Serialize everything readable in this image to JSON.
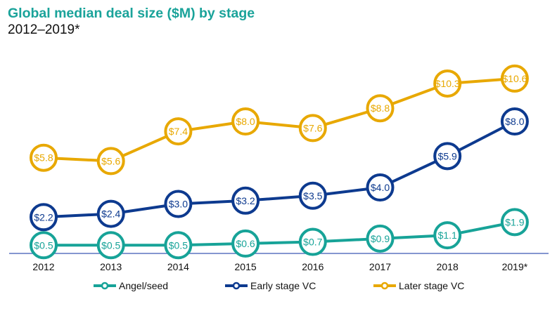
{
  "chart_data": {
    "type": "line",
    "title": "Global median deal size ($M) by stage",
    "subtitle": "2012–2019*",
    "xlabel": "",
    "ylabel": "",
    "categories": [
      "2012",
      "2013",
      "2014",
      "2015",
      "2016",
      "2017",
      "2018",
      "2019*"
    ],
    "ylim": [
      0,
      11
    ],
    "grid": false,
    "legend_position": "bottom",
    "series": [
      {
        "name": "Angel/seed",
        "color": "#17a398",
        "values": [
          0.5,
          0.5,
          0.5,
          0.6,
          0.7,
          0.9,
          1.1,
          1.9
        ],
        "labels": [
          "$0.5",
          "$0.5",
          "$0.5",
          "$0.6",
          "$0.7",
          "$0.9",
          "$1.1",
          "$1.9"
        ]
      },
      {
        "name": "Early stage VC",
        "color": "#0d3a8f",
        "values": [
          2.2,
          2.4,
          3.0,
          3.2,
          3.5,
          4.0,
          5.9,
          8.0
        ],
        "labels": [
          "$2.2",
          "$2.4",
          "$3.0",
          "$3.2",
          "$3.5",
          "$4.0",
          "$5.9",
          "$8.0"
        ]
      },
      {
        "name": "Later stage VC",
        "color": "#e8a800",
        "values": [
          5.8,
          5.6,
          7.4,
          8.0,
          7.6,
          8.8,
          10.3,
          10.6
        ],
        "labels": [
          "$5.8",
          "$5.6",
          "$7.4",
          "$8.0",
          "$7.6",
          "$8.8",
          "$10.3",
          "$10.6"
        ]
      }
    ],
    "axis_color": "#5b73c0"
  }
}
